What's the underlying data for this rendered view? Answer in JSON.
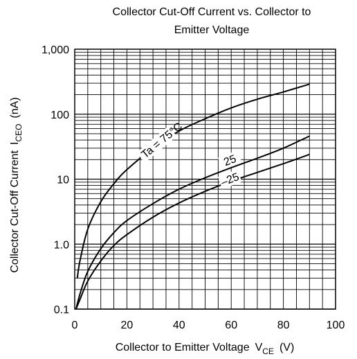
{
  "chart_data": {
    "type": "line",
    "title_line1": "Collector Cut-Off Current vs. Collector to",
    "title_line2": "Emitter Voltage",
    "xlabel": "Collector to Emitter Voltage",
    "xlabel_symbol": "V",
    "xlabel_sub": "CE",
    "xlabel_unit": "(V)",
    "ylabel": "Collector Cut-Off Current",
    "ylabel_symbol": "I",
    "ylabel_sub": "CEO",
    "ylabel_unit": "(nA)",
    "x_scale": "linear",
    "y_scale": "log",
    "xlim": [
      0,
      100
    ],
    "ylim": [
      0.1,
      1000
    ],
    "x_ticks": [
      0,
      20,
      40,
      60,
      80,
      100
    ],
    "x_tick_labels": [
      "0",
      "20",
      "40",
      "60",
      "80",
      "100"
    ],
    "y_ticks": [
      0.1,
      1,
      10,
      100,
      1000
    ],
    "y_tick_labels": [
      "0.1",
      "1.0",
      "10",
      "100",
      "1,000"
    ],
    "grid": true,
    "series": [
      {
        "name": "Ta = 75°C",
        "x": [
          1,
          2,
          5,
          10,
          15,
          20,
          30,
          40,
          50,
          60,
          70,
          80,
          90
        ],
        "y": [
          0.3,
          0.55,
          1.7,
          4.5,
          8.5,
          14,
          30,
          55,
          85,
          125,
          170,
          220,
          290
        ]
      },
      {
        "name": "25",
        "x": [
          0.5,
          2,
          5,
          10,
          15,
          20,
          30,
          40,
          50,
          60,
          70,
          80,
          90
        ],
        "y": [
          0.1,
          0.17,
          0.38,
          0.85,
          1.5,
          2.3,
          4.2,
          7,
          10.5,
          15,
          21,
          30,
          46
        ]
      },
      {
        "name": "–25",
        "x": [
          0.5,
          2,
          5,
          10,
          15,
          20,
          30,
          40,
          50,
          60,
          70,
          80,
          90
        ],
        "y": [
          0.1,
          0.14,
          0.27,
          0.55,
          0.95,
          1.4,
          2.6,
          4.3,
          6.5,
          9.3,
          12.7,
          17.3,
          24
        ]
      }
    ]
  }
}
